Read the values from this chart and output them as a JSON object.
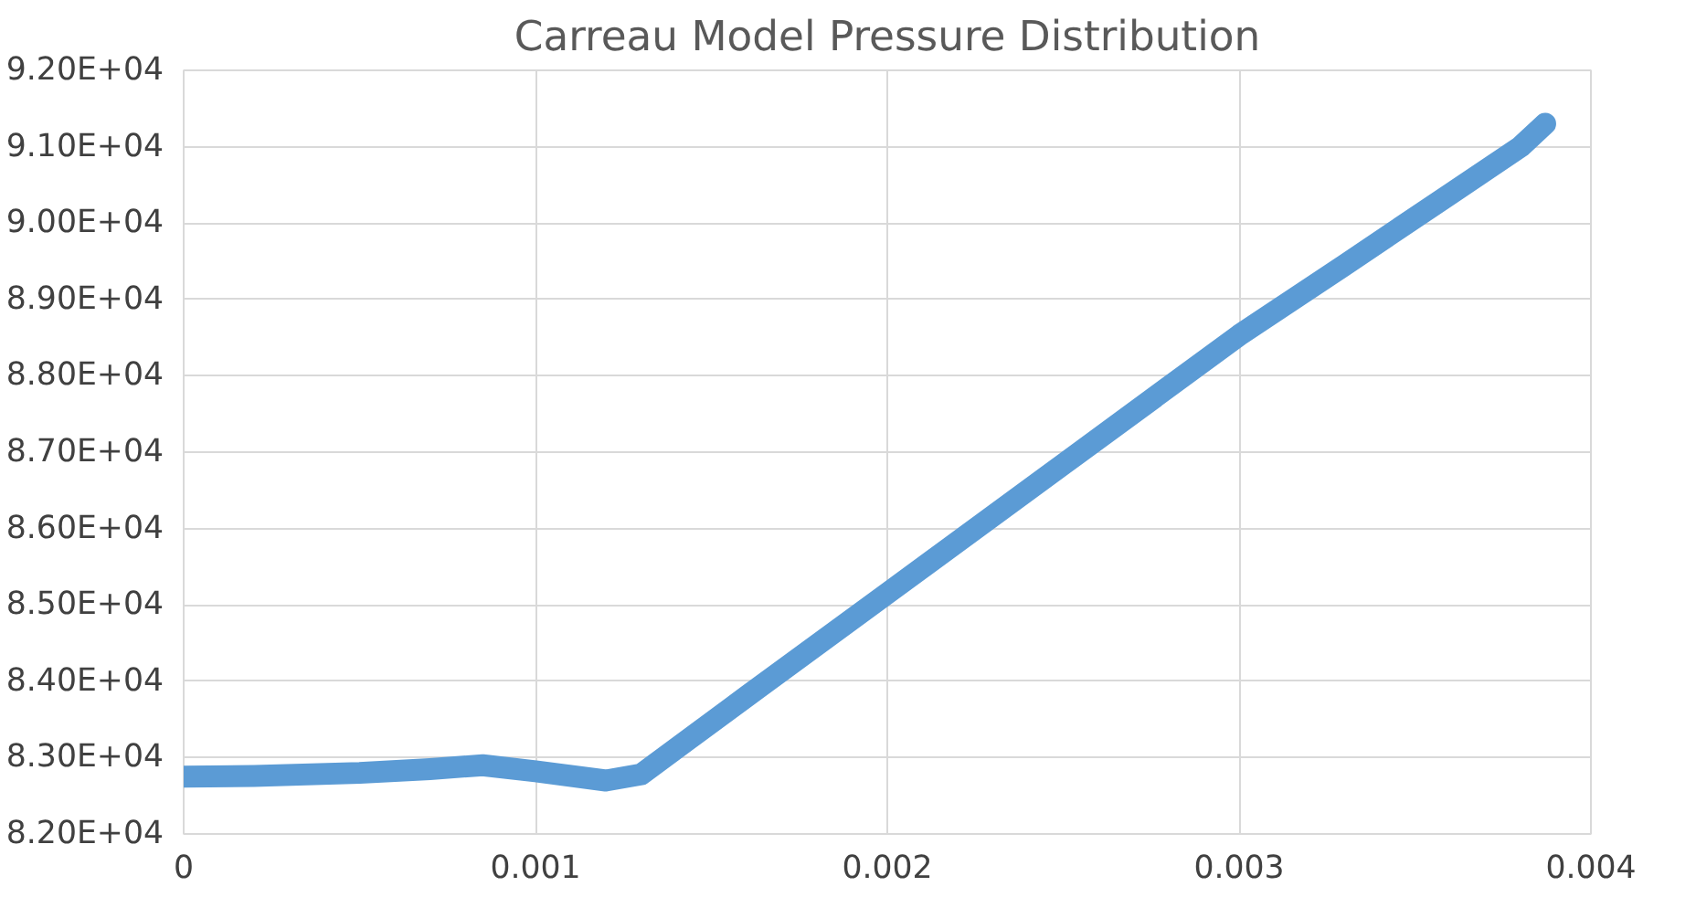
{
  "chart_data": {
    "type": "line",
    "title": "Carreau Model Pressure Distribution",
    "series": [
      {
        "color": "#5b9bd5",
        "x": [
          0,
          0.0002,
          0.0005,
          0.0007,
          0.00085,
          0.001,
          0.0012,
          0.0013,
          0.0016,
          0.002,
          0.0025,
          0.003,
          0.0033,
          0.0036,
          0.0038,
          0.00387
        ],
        "values": [
          82750,
          82760,
          82800,
          82850,
          82900,
          82820,
          82700,
          82780,
          83800,
          85150,
          86840,
          88530,
          89450,
          90380,
          91000,
          91300
        ]
      }
    ],
    "xlim": [
      0,
      0.004
    ],
    "xticks": [
      0,
      0.001,
      0.002,
      0.003,
      0.004
    ],
    "ylim": [
      82000,
      92000
    ],
    "yticks": [
      {
        "value": 82000,
        "label": "8.20E+04"
      },
      {
        "value": 83000,
        "label": "8.30E+04"
      },
      {
        "value": 84000,
        "label": "8.40E+04"
      },
      {
        "value": 85000,
        "label": "8.50E+04"
      },
      {
        "value": 86000,
        "label": "8.60E+04"
      },
      {
        "value": 87000,
        "label": "8.70E+04"
      },
      {
        "value": 88000,
        "label": "8.80E+04"
      },
      {
        "value": 89000,
        "label": "8.90E+04"
      },
      {
        "value": 90000,
        "label": "9.00E+04"
      },
      {
        "value": 91000,
        "label": "9.10E+04"
      },
      {
        "value": 92000,
        "label": "9.20E+04"
      }
    ],
    "grid": true
  }
}
